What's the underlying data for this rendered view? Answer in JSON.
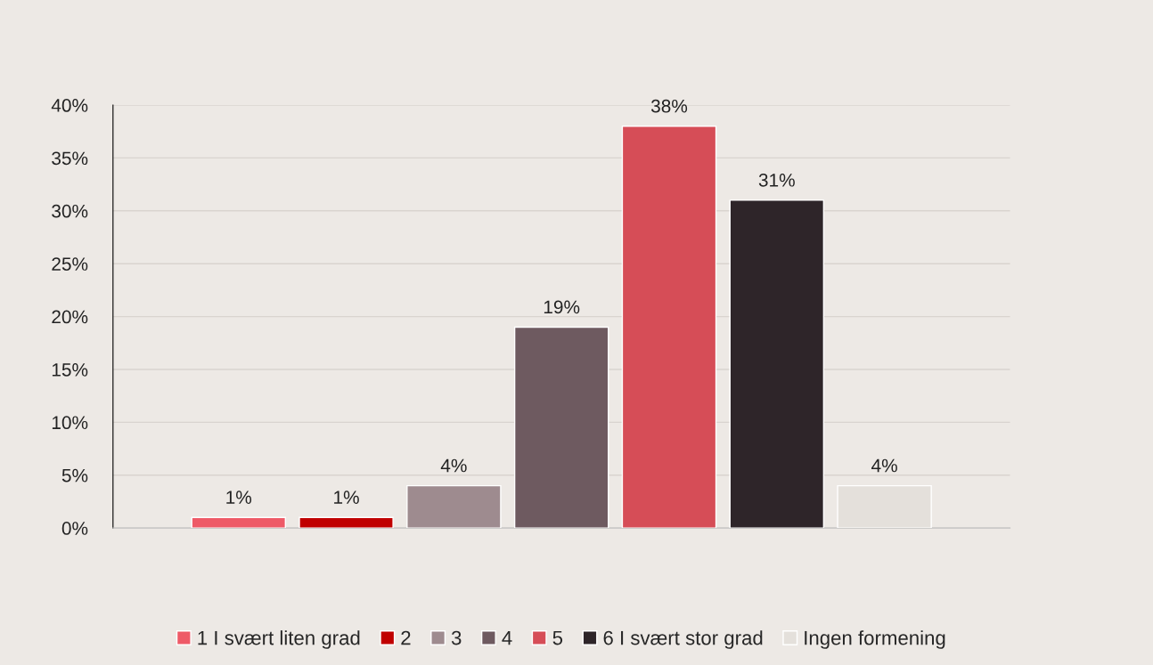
{
  "chart_data": {
    "type": "bar",
    "categories": [
      null
    ],
    "series": [
      {
        "name": "1 I svært liten grad",
        "color": "#ee5a67",
        "values": [
          1
        ],
        "value_labels": [
          "1%"
        ]
      },
      {
        "name": "2",
        "color": "#c00000",
        "values": [
          1
        ],
        "value_labels": [
          "1%"
        ]
      },
      {
        "name": "3",
        "color": "#9e8b8f",
        "values": [
          4
        ],
        "value_labels": [
          "4%"
        ]
      },
      {
        "name": "4",
        "color": "#6e5a60",
        "values": [
          19
        ],
        "value_labels": [
          "19%"
        ]
      },
      {
        "name": "5",
        "color": "#d64d57",
        "values": [
          38
        ],
        "value_labels": [
          "38%"
        ]
      },
      {
        "name": "6 I svært stor grad",
        "color": "#2e2529",
        "values": [
          31
        ],
        "value_labels": [
          "31%"
        ]
      },
      {
        "name": "Ingen formening",
        "color": "#e4e0db",
        "values": [
          4
        ],
        "value_labels": [
          "4%"
        ]
      }
    ],
    "ylim": [
      0,
      40
    ],
    "yticks": [
      {
        "value": 0,
        "label": "0%"
      },
      {
        "value": 5,
        "label": "5%"
      },
      {
        "value": 10,
        "label": "10%"
      },
      {
        "value": 15,
        "label": "15%"
      },
      {
        "value": 20,
        "label": "20%"
      },
      {
        "value": 25,
        "label": "25%"
      },
      {
        "value": 30,
        "label": "30%"
      },
      {
        "value": 35,
        "label": "35%"
      },
      {
        "value": 40,
        "label": "40%"
      }
    ],
    "grid": "y",
    "legend": "bottom"
  }
}
